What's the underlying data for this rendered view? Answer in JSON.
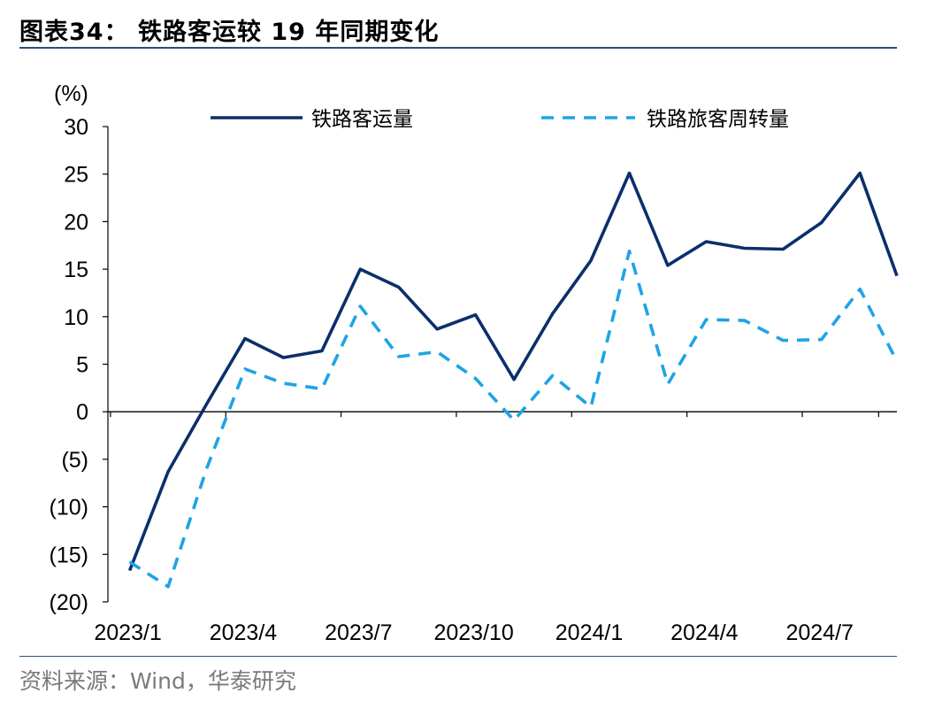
{
  "header": {
    "title": "图表34：  铁路客运较 19 年同期变化"
  },
  "footer": {
    "source": "资料来源：Wind，华泰研究"
  },
  "chart_data": {
    "type": "line",
    "title": "图表34：  铁路客运较 19 年同期变化",
    "ylabel": "(%)",
    "xlabel": "",
    "ylim": [
      -20,
      30
    ],
    "yticks": [
      30,
      25,
      20,
      15,
      10,
      5,
      0,
      -5,
      -10,
      -15,
      -20
    ],
    "ytick_labels": [
      "30",
      "25",
      "20",
      "15",
      "10",
      "5",
      "0",
      "(5)",
      "(10)",
      "(15)",
      "(20)"
    ],
    "x": [
      "2023/1",
      "2023/2",
      "2023/3",
      "2023/4",
      "2023/5",
      "2023/6",
      "2023/7",
      "2023/8",
      "2023/9",
      "2023/10",
      "2023/11",
      "2023/12",
      "2024/1",
      "2024/2",
      "2024/3",
      "2024/4",
      "2024/5",
      "2024/6",
      "2024/7",
      "2024/8",
      "2024/9"
    ],
    "xtick_labels": [
      "2023/1",
      "2023/4",
      "2023/7",
      "2023/10",
      "2024/1",
      "2024/4",
      "2024/7"
    ],
    "legend_position": "top",
    "grid": false,
    "series": [
      {
        "name": "铁路客运量",
        "color": "#0b2f6b",
        "style": "solid",
        "values": [
          -16.7,
          -6.3,
          0.8,
          7.7,
          5.7,
          6.4,
          15.0,
          13.1,
          8.7,
          10.2,
          3.4,
          10.3,
          15.9,
          25.1,
          15.4,
          17.9,
          17.2,
          17.1,
          19.9,
          25.1,
          14.3
        ]
      },
      {
        "name": "铁路旅客周转量",
        "color": "#1ea3e6",
        "style": "dashed",
        "values": [
          -15.8,
          -18.4,
          -6.0,
          4.5,
          3.0,
          2.4,
          11.1,
          5.8,
          6.3,
          3.5,
          -0.9,
          3.8,
          0.5,
          16.9,
          2.9,
          9.7,
          9.6,
          7.5,
          7.6,
          12.9,
          5.3
        ]
      }
    ]
  }
}
